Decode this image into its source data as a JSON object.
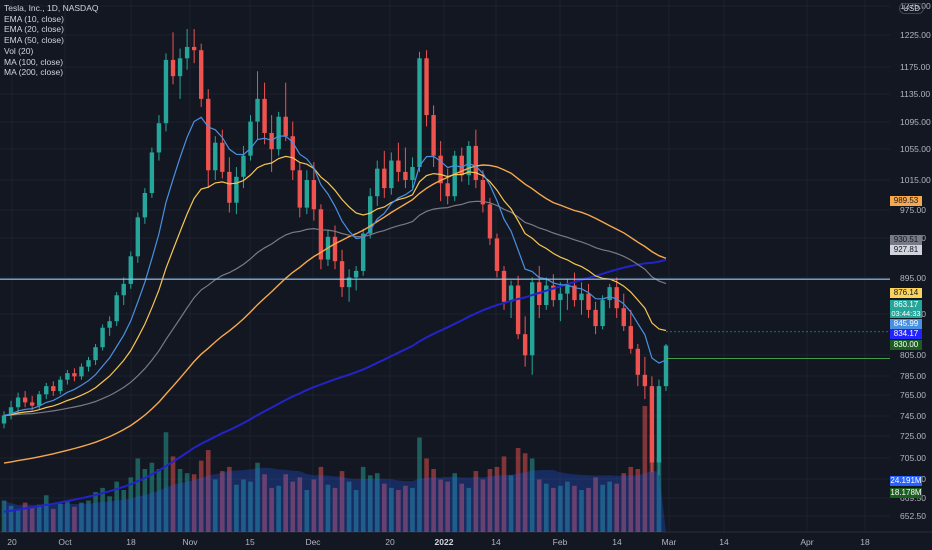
{
  "chart_data": {
    "type": "candlestick",
    "title": "Tesla, Inc., 1D, NASDAQ",
    "currency": "USD",
    "indicators": [
      "EMA (10, close)",
      "EMA (20, close)",
      "EMA (50, close)",
      "Vol (20)",
      "MA (100, close)",
      "MA (200, close)"
    ],
    "y_axis": {
      "ticks": [
        "1275.00",
        "1225.00",
        "1175.00",
        "1135.00",
        "1095.00",
        "1055.00",
        "1015.00",
        "975.00",
        "935.00",
        "895.00",
        "855.00",
        "805.00",
        "785.00",
        "765.00",
        "745.00",
        "725.00",
        "705.00",
        "685.00",
        "669.50",
        "652.50"
      ]
    },
    "x_axis": {
      "labels": [
        "20",
        "Oct",
        "18",
        "Nov",
        "15",
        "Dec",
        "20",
        "2022",
        "14",
        "Feb",
        "14",
        "Mar",
        "14",
        "Apr",
        "18"
      ]
    },
    "horizontal_line": 927.81,
    "price_labels": [
      {
        "value": "989.53",
        "color": "#f7a84d"
      },
      {
        "value": "930.51",
        "color": "#787b86"
      },
      {
        "value": "927.81",
        "color": "#d1d4dc"
      },
      {
        "value": "876.14",
        "color": "#f9d35b"
      },
      {
        "value": "863.17",
        "color": "#26a69a"
      },
      {
        "value": "845.99",
        "color": "#4a90e2"
      },
      {
        "value": "834.17",
        "color": "#2323ff"
      },
      {
        "value": "830.00",
        "color": "#1b5e20"
      },
      {
        "value": "24.191M",
        "color": "#2962ff"
      },
      {
        "value": "18.178M",
        "color": "#1b5e20"
      }
    ],
    "countdown": "03:44:33",
    "candles": [
      [
        750,
        765,
        744,
        760
      ],
      [
        760,
        778,
        755,
        770
      ],
      [
        770,
        788,
        762,
        782
      ],
      [
        782,
        790,
        770,
        776
      ],
      [
        776,
        784,
        766,
        772
      ],
      [
        772,
        790,
        768,
        786
      ],
      [
        786,
        800,
        780,
        796
      ],
      [
        796,
        802,
        784,
        790
      ],
      [
        790,
        808,
        786,
        804
      ],
      [
        804,
        816,
        798,
        812
      ],
      [
        812,
        818,
        802,
        808
      ],
      [
        808,
        824,
        804,
        820
      ],
      [
        820,
        832,
        814,
        828
      ],
      [
        828,
        848,
        822,
        844
      ],
      [
        844,
        872,
        840,
        868
      ],
      [
        868,
        882,
        858,
        876
      ],
      [
        876,
        912,
        870,
        908
      ],
      [
        908,
        930,
        896,
        922
      ],
      [
        922,
        962,
        916,
        956
      ],
      [
        956,
        1010,
        948,
        1004
      ],
      [
        1004,
        1040,
        996,
        1034
      ],
      [
        1034,
        1090,
        1028,
        1084
      ],
      [
        1084,
        1130,
        1074,
        1120
      ],
      [
        1120,
        1206,
        1110,
        1198
      ],
      [
        1198,
        1232,
        1168,
        1178
      ],
      [
        1178,
        1212,
        1150,
        1200
      ],
      [
        1200,
        1236,
        1186,
        1214
      ],
      [
        1214,
        1236,
        1194,
        1210
      ],
      [
        1210,
        1218,
        1140,
        1150
      ],
      [
        1150,
        1162,
        1040,
        1062
      ],
      [
        1062,
        1104,
        1050,
        1096
      ],
      [
        1096,
        1112,
        1052,
        1060
      ],
      [
        1060,
        1078,
        1010,
        1022
      ],
      [
        1022,
        1066,
        1008,
        1054
      ],
      [
        1054,
        1092,
        1040,
        1080
      ],
      [
        1080,
        1130,
        1074,
        1122
      ],
      [
        1122,
        1184,
        1100,
        1150
      ],
      [
        1150,
        1170,
        1094,
        1108
      ],
      [
        1108,
        1130,
        1060,
        1088
      ],
      [
        1088,
        1134,
        1080,
        1128
      ],
      [
        1128,
        1170,
        1098,
        1104
      ],
      [
        1104,
        1122,
        1050,
        1062
      ],
      [
        1062,
        1072,
        1004,
        1016
      ],
      [
        1016,
        1062,
        1008,
        1050
      ],
      [
        1050,
        1072,
        1000,
        1014
      ],
      [
        1014,
        1020,
        940,
        952
      ],
      [
        952,
        988,
        944,
        980
      ],
      [
        980,
        994,
        940,
        950
      ],
      [
        950,
        964,
        906,
        918
      ],
      [
        918,
        940,
        900,
        930
      ],
      [
        930,
        944,
        914,
        938
      ],
      [
        938,
        990,
        932,
        984
      ],
      [
        984,
        1040,
        978,
        1030
      ],
      [
        1030,
        1074,
        1018,
        1064
      ],
      [
        1064,
        1086,
        1028,
        1040
      ],
      [
        1040,
        1084,
        1032,
        1074
      ],
      [
        1074,
        1096,
        1048,
        1060
      ],
      [
        1060,
        1090,
        1040,
        1050
      ],
      [
        1050,
        1078,
        1040,
        1066
      ],
      [
        1066,
        1208,
        1060,
        1200
      ],
      [
        1200,
        1210,
        1116,
        1130
      ],
      [
        1130,
        1142,
        1066,
        1080
      ],
      [
        1080,
        1098,
        1024,
        1046
      ],
      [
        1046,
        1064,
        1020,
        1030
      ],
      [
        1030,
        1086,
        1024,
        1080
      ],
      [
        1080,
        1090,
        1048,
        1056
      ],
      [
        1056,
        1098,
        1044,
        1092
      ],
      [
        1092,
        1112,
        1040,
        1050
      ],
      [
        1050,
        1062,
        1010,
        1020
      ],
      [
        1020,
        1028,
        970,
        978
      ],
      [
        978,
        984,
        930,
        938
      ],
      [
        938,
        944,
        890,
        900
      ],
      [
        900,
        926,
        880,
        920
      ],
      [
        920,
        932,
        854,
        860
      ],
      [
        860,
        882,
        820,
        834
      ],
      [
        834,
        930,
        810,
        924
      ],
      [
        924,
        944,
        880,
        896
      ],
      [
        896,
        930,
        890,
        920
      ],
      [
        920,
        934,
        894,
        902
      ],
      [
        902,
        924,
        876,
        910
      ],
      [
        910,
        928,
        890,
        920
      ],
      [
        920,
        936,
        894,
        902
      ],
      [
        902,
        924,
        884,
        910
      ],
      [
        910,
        922,
        880,
        890
      ],
      [
        890,
        900,
        860,
        870
      ],
      [
        870,
        908,
        866,
        902
      ],
      [
        902,
        922,
        892,
        918
      ],
      [
        918,
        930,
        880,
        892
      ],
      [
        892,
        910,
        864,
        870
      ],
      [
        870,
        890,
        836,
        842
      ],
      [
        842,
        848,
        796,
        810
      ],
      [
        810,
        832,
        780,
        796
      ],
      [
        796,
        808,
        690,
        702
      ],
      [
        702,
        804,
        686,
        796
      ],
      [
        796,
        848,
        790,
        846
      ]
    ],
    "volumes": [
      30,
      25,
      22,
      28,
      24,
      26,
      35,
      22,
      27,
      30,
      24,
      28,
      30,
      38,
      42,
      34,
      48,
      40,
      52,
      70,
      60,
      66,
      60,
      95,
      72,
      60,
      56,
      55,
      68,
      78,
      50,
      58,
      62,
      45,
      50,
      48,
      66,
      55,
      42,
      44,
      55,
      48,
      52,
      40,
      50,
      62,
      45,
      42,
      58,
      48,
      40,
      62,
      54,
      56,
      46,
      42,
      40,
      44,
      42,
      90,
      70,
      60,
      50,
      48,
      56,
      46,
      42,
      58,
      50,
      60,
      62,
      72,
      54,
      80,
      75,
      70,
      50,
      46,
      42,
      44,
      48,
      44,
      40,
      42,
      52,
      45,
      48,
      46,
      56,
      62,
      60,
      120,
      92,
      70
    ]
  }
}
